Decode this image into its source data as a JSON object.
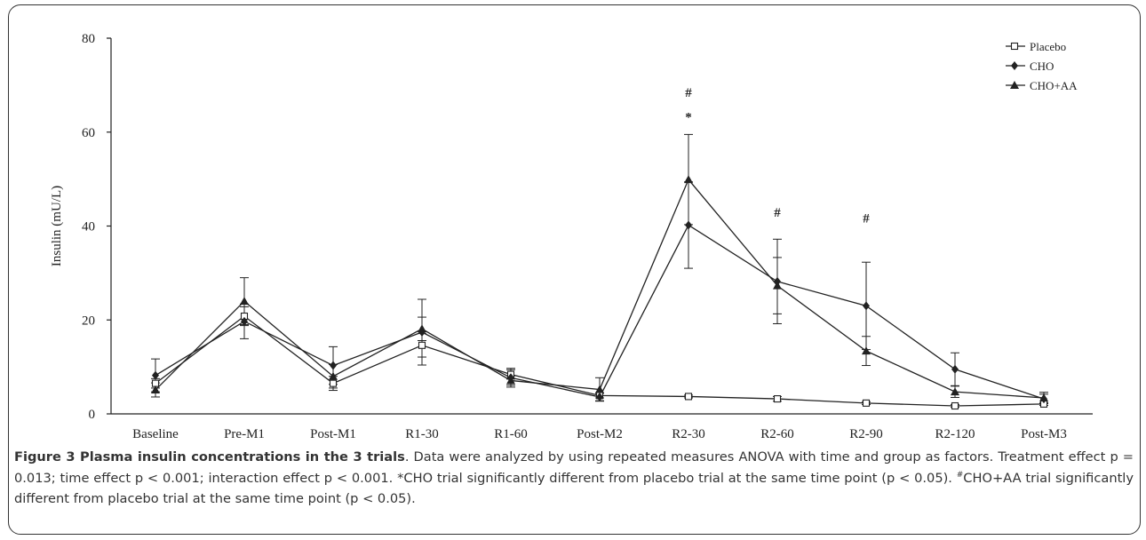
{
  "chart_data": {
    "type": "line",
    "ylabel": "Insulin (mU/L)",
    "xlabel": "",
    "ylim": [
      0,
      80
    ],
    "yticks": [
      0,
      20,
      40,
      60,
      80
    ],
    "categories": [
      "Baseline",
      "Pre-M1",
      "Post-M1",
      "R1-30",
      "R1-60",
      "Post-M2",
      "R2-30",
      "R2-60",
      "R2-90",
      "R2-120",
      "Post-M3"
    ],
    "legend_position": "top-right",
    "grid": false,
    "series": [
      {
        "name": "Placebo",
        "marker": "open-square",
        "values": [
          6.5,
          20.8,
          6.5,
          14.6,
          8.4,
          3.9,
          3.7,
          3.2,
          2.3,
          1.7,
          2.1
        ],
        "error": [
          1.0,
          2.0,
          1.5,
          2.5,
          1.0,
          0.5,
          0.3,
          0.5,
          0.3,
          0.3,
          0.3
        ]
      },
      {
        "name": "CHO",
        "marker": "filled-diamond",
        "values": [
          8.2,
          19.7,
          10.3,
          17.4,
          7.7,
          3.6,
          40.2,
          28.2,
          23.0,
          9.5,
          3.2
        ],
        "error": [
          3.5,
          3.7,
          4.0,
          7.0,
          2.0,
          0.8,
          9.2,
          9.0,
          9.3,
          3.5,
          1.0
        ]
      },
      {
        "name": "CHO+AA",
        "marker": "filled-triangle",
        "values": [
          5.1,
          24.0,
          8.0,
          18.1,
          7.1,
          5.2,
          49.9,
          27.3,
          13.4,
          4.7,
          3.4
        ],
        "error": [
          1.5,
          5.0,
          2.5,
          2.5,
          1.0,
          2.5,
          9.6,
          6.0,
          3.1,
          1.2,
          1.2
        ]
      }
    ],
    "annotations": [
      {
        "category": "R2-30",
        "y": 67.5,
        "text": "#"
      },
      {
        "category": "R2-30",
        "y": 62.3,
        "text": "*"
      },
      {
        "category": "R2-60",
        "y": 42.0,
        "text": "#"
      },
      {
        "category": "R2-90",
        "y": 40.8,
        "text": "#"
      }
    ]
  },
  "caption": {
    "title": "Figure 3 Plasma insulin concentrations in the 3 trials",
    "body_1": ". Data were analyzed by using repeated measures ANOVA with time and group as factors. Treatment effect p = 0.013; time effect p < 0.001; interaction effect p < 0.001. *CHO trial significantly different from placebo trial at the same time point (p < 0.05). ",
    "body_sup": "#",
    "body_2": "CHO+AA trial significantly different from placebo trial at the same time point (p < 0.05)."
  },
  "colors": {
    "line": "#222222",
    "text": "#333333",
    "border": "#333333"
  }
}
